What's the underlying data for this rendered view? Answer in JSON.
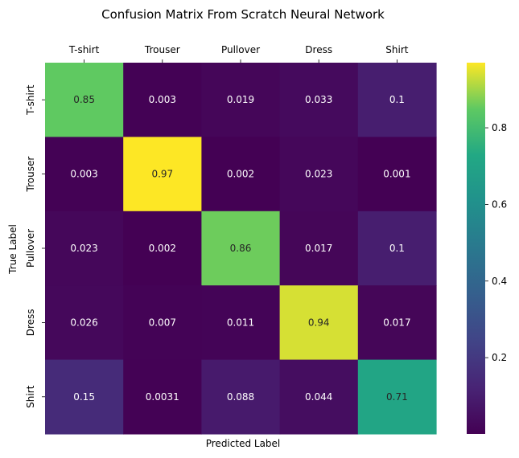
{
  "chart_data": {
    "type": "heatmap",
    "title": "Confusion Matrix From Scratch Neural Network",
    "xlabel": "Predicted Label",
    "ylabel": "True Label",
    "x_categories": [
      "T-shirt",
      "Trouser",
      "Pullover",
      "Dress",
      "Shirt"
    ],
    "y_categories": [
      "T-shirt",
      "Trouser",
      "Pullover",
      "Dress",
      "Shirt"
    ],
    "x_tick_position": "top",
    "values": [
      [
        0.85,
        0.003,
        0.019,
        0.033,
        0.1
      ],
      [
        0.003,
        0.97,
        0.002,
        0.023,
        0.001
      ],
      [
        0.023,
        0.002,
        0.86,
        0.017,
        0.1
      ],
      [
        0.026,
        0.007,
        0.011,
        0.94,
        0.017
      ],
      [
        0.15,
        0.0031,
        0.088,
        0.044,
        0.71
      ]
    ],
    "cell_labels": [
      [
        "0.85",
        "0.003",
        "0.019",
        "0.033",
        "0.1"
      ],
      [
        "0.003",
        "0.97",
        "0.002",
        "0.023",
        "0.001"
      ],
      [
        "0.023",
        "0.002",
        "0.86",
        "0.017",
        "0.1"
      ],
      [
        "0.026",
        "0.007",
        "0.011",
        "0.94",
        "0.017"
      ],
      [
        "0.15",
        "0.0031",
        "0.088",
        "0.044",
        "0.71"
      ]
    ],
    "colormap": "viridis",
    "colorbar_range": [
      0.001,
      0.97
    ],
    "colorbar_ticks": [
      0.2,
      0.4,
      0.6,
      0.8
    ],
    "colorbar_tick_labels": [
      "0.2",
      "0.4",
      "0.6",
      "0.8"
    ]
  }
}
